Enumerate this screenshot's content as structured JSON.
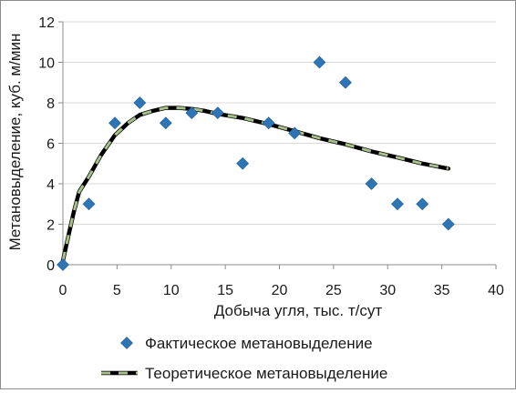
{
  "chart_data": {
    "type": "scatter",
    "title": "",
    "xlabel": "Добыча угля, тыс. т/сут",
    "ylabel": "Метановыделение, куб. м/мин",
    "xlim": [
      0,
      40
    ],
    "ylim": [
      0,
      12
    ],
    "x_ticks": [
      "0",
      "5",
      "10",
      "15",
      "20",
      "25",
      "30",
      "35",
      "40"
    ],
    "y_ticks": [
      "0",
      "2",
      "4",
      "6",
      "8",
      "10",
      "12"
    ],
    "grid": "horizontal",
    "legend_position": "bottom",
    "series": [
      {
        "name": "Фактическое метановыделение",
        "kind": "scatter",
        "marker": "diamond",
        "color": "#2e75b6",
        "points": [
          [
            0,
            0
          ],
          [
            2.4,
            3
          ],
          [
            4.8,
            7
          ],
          [
            7.1,
            8
          ],
          [
            9.5,
            7
          ],
          [
            11.9,
            7.5
          ],
          [
            14.3,
            7.5
          ],
          [
            16.6,
            5
          ],
          [
            19,
            7
          ],
          [
            21.4,
            6.5
          ],
          [
            23.7,
            10
          ],
          [
            26.1,
            9
          ],
          [
            28.5,
            4
          ],
          [
            30.9,
            3
          ],
          [
            33.2,
            3
          ],
          [
            35.6,
            2
          ]
        ]
      },
      {
        "name": "Теоретическое метановыделение",
        "kind": "line",
        "color": "#000000",
        "dash_color": "#a9c08a",
        "points": [
          [
            0,
            0.2
          ],
          [
            0.5,
            1.4
          ],
          [
            1,
            2.6
          ],
          [
            1.5,
            3.6
          ],
          [
            2.4,
            4.35
          ],
          [
            3.5,
            5.4
          ],
          [
            4.8,
            6.4
          ],
          [
            6,
            7.0
          ],
          [
            7.1,
            7.4
          ],
          [
            8.3,
            7.6
          ],
          [
            9.5,
            7.75
          ],
          [
            10.7,
            7.75
          ],
          [
            11.9,
            7.7
          ],
          [
            13.1,
            7.6
          ],
          [
            14.3,
            7.45
          ],
          [
            16.6,
            7.25
          ],
          [
            19,
            6.95
          ],
          [
            21.4,
            6.6
          ],
          [
            23.7,
            6.25
          ],
          [
            26.1,
            5.95
          ],
          [
            28.5,
            5.6
          ],
          [
            30.9,
            5.3
          ],
          [
            33.2,
            5.0
          ],
          [
            35.6,
            4.75
          ]
        ]
      }
    ]
  }
}
